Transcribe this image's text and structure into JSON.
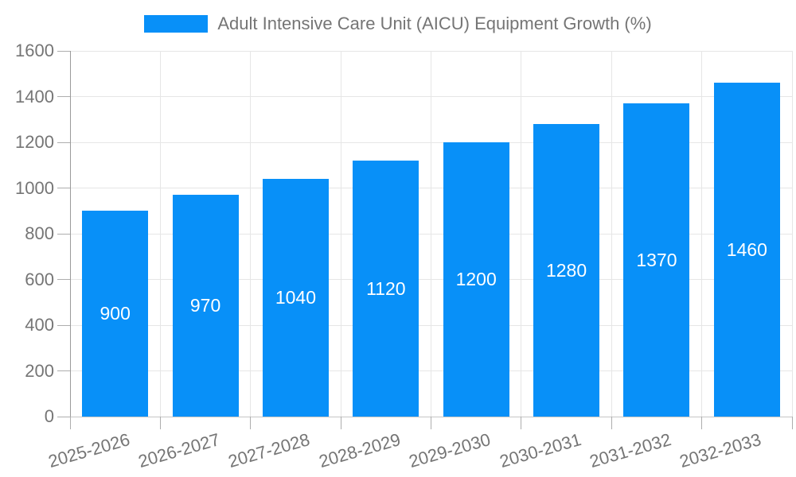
{
  "legend": {
    "label": "Adult Intensive Care Unit (AICU) Equipment Growth (%)"
  },
  "chart_data": {
    "type": "bar",
    "title": "Adult Intensive Care Unit (AICU) Equipment Growth (%)",
    "categories": [
      "2025-2026",
      "2026-2027",
      "2027-2028",
      "2028-2029",
      "2029-2030",
      "2030-2031",
      "2031-2032",
      "2032-2033"
    ],
    "values": [
      900,
      970,
      1040,
      1120,
      1200,
      1280,
      1370,
      1460
    ],
    "bar_labels": [
      "900",
      "970",
      "1040",
      "1120",
      "1200",
      "1280",
      "1370",
      "1460"
    ],
    "xlabel": "",
    "ylabel": "",
    "ylim": [
      0,
      1600
    ],
    "yticks": [
      0,
      200,
      400,
      600,
      800,
      1000,
      1200,
      1400,
      1600
    ],
    "grid": true,
    "legend_position": "top-center",
    "colors": {
      "bar": "#0890f8",
      "bar_label": "#ffffff",
      "axis_text": "#757575",
      "legend_text": "#757575",
      "gridline": "#e6e6e6",
      "axis_line": "#c6c6c6",
      "y_axis_line": "#9a9a9a",
      "tick": "#adadad",
      "background": "#ffffff"
    }
  }
}
